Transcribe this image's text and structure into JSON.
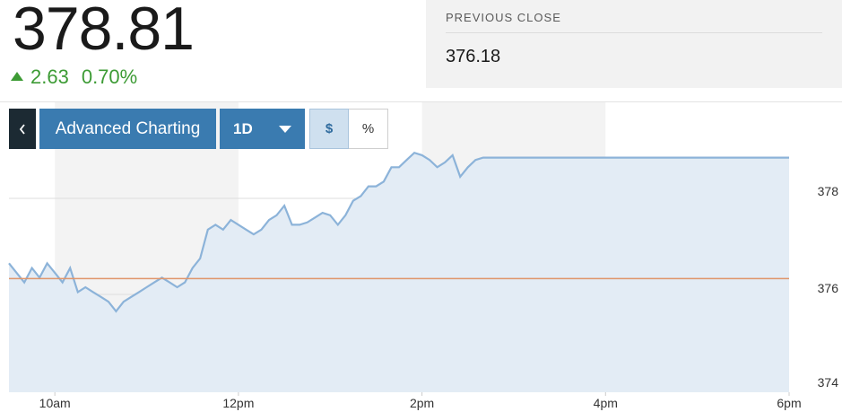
{
  "quote": {
    "price": "378.81",
    "change": "2.63",
    "change_percent": "0.70%",
    "direction": "up"
  },
  "previous_close": {
    "label": "PREVIOUS CLOSE",
    "value": "376.18"
  },
  "toolbar": {
    "back_icon": "chevron-left-icon",
    "advanced_label": "Advanced Charting",
    "range_label": "1D",
    "dollar_label": "$",
    "percent_label": "%",
    "selected_mode": "$"
  },
  "colors": {
    "price_line": "#8cb3d9",
    "area_fill": "#e3ecf5",
    "previous_close_line": "#e0956a",
    "positive": "#3d9b35",
    "button": "#3a7bb0",
    "back_button": "#1c2a33"
  },
  "chart_data": {
    "type": "area",
    "x_tick_labels": [
      "10am",
      "12pm",
      "2pm",
      "4pm",
      "6pm"
    ],
    "y_tick_labels": [
      "378",
      "376",
      "374"
    ],
    "ylim": [
      374,
      379.2
    ],
    "xlim": [
      "9:30",
      "18:00"
    ],
    "reference_line": {
      "value": 376.18
    },
    "series": [
      {
        "x": [
          "9:30",
          "9:35",
          "9:40",
          "9:45",
          "9:50",
          "9:55",
          "10:00",
          "10:05",
          "10:10",
          "10:15",
          "10:20",
          "10:25",
          "10:30",
          "10:35",
          "10:40",
          "10:45",
          "10:50",
          "10:55",
          "11:00",
          "11:05",
          "11:10",
          "11:15",
          "11:20",
          "11:25",
          "11:30",
          "11:35",
          "11:40",
          "11:45",
          "11:50",
          "11:55",
          "12:00",
          "12:05",
          "12:10",
          "12:15",
          "12:20",
          "12:25",
          "12:30",
          "12:35",
          "12:40",
          "12:45",
          "12:50",
          "12:55",
          "13:00",
          "13:05",
          "13:10",
          "13:15",
          "13:20",
          "13:25",
          "13:30",
          "13:35",
          "13:40",
          "13:45",
          "13:50",
          "13:55",
          "14:00",
          "14:05",
          "14:10",
          "14:15",
          "14:20",
          "14:25",
          "14:30",
          "14:35",
          "14:40",
          "14:45",
          "14:50",
          "14:55",
          "15:00",
          "15:05",
          "15:10",
          "15:15",
          "15:20",
          "15:25",
          "15:30",
          "15:35",
          "15:40",
          "15:45",
          "15:50",
          "15:55",
          "16:00",
          "16:05",
          "16:10",
          "16:15",
          "16:20",
          "16:25",
          "16:30",
          "16:35",
          "16:40",
          "16:45",
          "16:50",
          "16:55",
          "17:00",
          "17:05",
          "17:10",
          "17:15",
          "17:20",
          "17:25",
          "17:30",
          "17:35",
          "17:40",
          "17:45",
          "17:50",
          "17:55",
          "18:00"
        ],
        "values": [
          376.5,
          376.3,
          376.1,
          376.4,
          376.2,
          376.5,
          376.3,
          376.1,
          376.4,
          375.9,
          376.0,
          375.9,
          375.8,
          375.7,
          375.5,
          375.7,
          375.8,
          375.9,
          376.0,
          376.1,
          376.2,
          376.1,
          376.0,
          376.1,
          376.4,
          376.6,
          377.2,
          377.3,
          377.2,
          377.4,
          377.3,
          377.2,
          377.1,
          377.2,
          377.4,
          377.5,
          377.7,
          377.3,
          377.3,
          377.35,
          377.45,
          377.55,
          377.5,
          377.3,
          377.5,
          377.8,
          377.9,
          378.1,
          378.1,
          378.2,
          378.5,
          378.5,
          378.65,
          378.8,
          378.75,
          378.65,
          378.5,
          378.6,
          378.75,
          378.3,
          378.5,
          378.65,
          378.7,
          378.7,
          378.7,
          378.7,
          378.7,
          378.7,
          378.7,
          378.7,
          378.7,
          378.7,
          378.7,
          378.7,
          378.7,
          378.7,
          378.7,
          378.7,
          378.7,
          378.7,
          378.7,
          378.7,
          378.7,
          378.7,
          378.7,
          378.7,
          378.7,
          378.7,
          378.7,
          378.7,
          378.7,
          378.7,
          378.7,
          378.7,
          378.7,
          378.7,
          378.7,
          378.7,
          378.7,
          378.7,
          378.7,
          378.7,
          378.7
        ]
      }
    ],
    "grid": true
  }
}
